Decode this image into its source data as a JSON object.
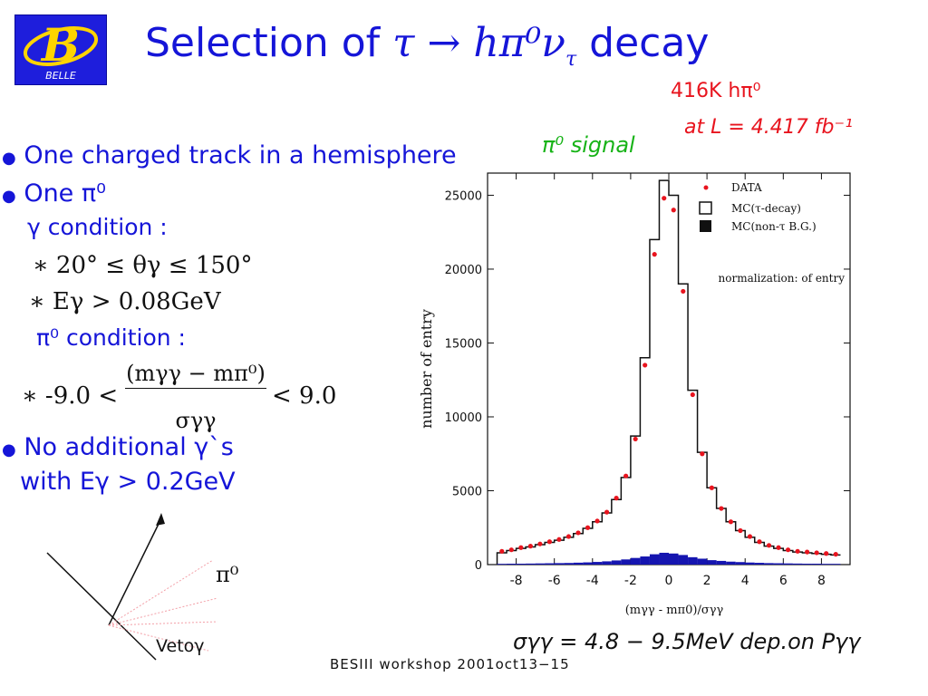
{
  "title": {
    "main": "Selection of",
    "decay": "τ → hπ⁰ν",
    "nu_sub": "τ",
    "suffix": "decay"
  },
  "logo": {
    "letter": "B",
    "text": "BELLE"
  },
  "stats": {
    "line1": "416K  hπ⁰",
    "line2": "at  L = 4.417 fb⁻¹",
    "signal": "π⁰ signal"
  },
  "bullets": [
    "One charged track in a hemisphere",
    "One π⁰",
    "No  additional γ`s",
    "with Eγ > 0.2GeV"
  ],
  "conditions": {
    "gamma_head": "γ condition :",
    "gamma_c1": "∗ 20° ≤ θγ ≤ 150°",
    "gamma_c2": "∗ Eγ > 0.08GeV",
    "pi0_head": "π⁰ condition :",
    "pi0_lhs": "∗ -9.0 <",
    "pi0_num": "(mγγ − mπ⁰)",
    "pi0_den": "σγγ",
    "pi0_rhs": "< 9.0"
  },
  "diagram": {
    "pi0_label": "π⁰",
    "veto_label": "Vetoγ"
  },
  "sigma_note": "σγγ = 4.8 − 9.5MeV dep.on Pγγ",
  "footer": "BESIII  workshop  2001oct13−15",
  "chart_data": {
    "type": "histogram",
    "xlabel": "(mγγ - mπ0)/σγγ",
    "ylabel": "number of entry",
    "note": "normalization:  of entry",
    "xlim": [
      -9.5,
      9.5
    ],
    "ylim": [
      0,
      26500
    ],
    "xticks": [
      -8,
      -6,
      -4,
      -2,
      0,
      2,
      4,
      6,
      8
    ],
    "yticks": [
      0,
      5000,
      10000,
      15000,
      20000,
      25000
    ],
    "legend": [
      "DATA",
      "MC(τ-decay)",
      "MC(non-τ B.G.)"
    ],
    "legend_position": "top-right",
    "series": [
      {
        "name": "DATA",
        "x": [
          -8.75,
          -8.25,
          -7.75,
          -7.25,
          -6.75,
          -6.25,
          -5.75,
          -5.25,
          -4.75,
          -4.25,
          -3.75,
          -3.25,
          -2.75,
          -2.25,
          -1.75,
          -1.25,
          -0.75,
          -0.25,
          0.25,
          0.75,
          1.25,
          1.75,
          2.25,
          2.75,
          3.25,
          3.75,
          4.25,
          4.75,
          5.25,
          5.75,
          6.25,
          6.75,
          7.25,
          7.75,
          8.25,
          8.75
        ],
        "values": [
          900,
          1000,
          1150,
          1250,
          1400,
          1550,
          1700,
          1900,
          2150,
          2500,
          2950,
          3550,
          4500,
          6000,
          8500,
          13500,
          21000,
          24800,
          24000,
          18500,
          11500,
          7500,
          5200,
          3800,
          2900,
          2300,
          1900,
          1550,
          1300,
          1150,
          1000,
          900,
          850,
          800,
          750,
          700
        ]
      },
      {
        "name": "MC(τ-decay)",
        "x": [
          -8.75,
          -8.25,
          -7.75,
          -7.25,
          -6.75,
          -6.25,
          -5.75,
          -5.25,
          -4.75,
          -4.25,
          -3.75,
          -3.25,
          -2.75,
          -2.25,
          -1.75,
          -1.25,
          -0.75,
          -0.25,
          0.25,
          0.75,
          1.25,
          1.75,
          2.25,
          2.75,
          3.25,
          3.75,
          4.25,
          4.75,
          5.25,
          5.75,
          6.25,
          6.75,
          7.25,
          7.75,
          8.25,
          8.75
        ],
        "values": [
          800,
          950,
          1100,
          1200,
          1350,
          1500,
          1650,
          1850,
          2100,
          2450,
          2900,
          3500,
          4400,
          5900,
          8700,
          14000,
          22000,
          26000,
          25000,
          19000,
          11800,
          7600,
          5200,
          3800,
          2900,
          2300,
          1850,
          1500,
          1250,
          1100,
          950,
          850,
          800,
          750,
          700,
          650
        ]
      },
      {
        "name": "MC(non-τ B.G.)",
        "x": [
          -8.75,
          -8.25,
          -7.75,
          -7.25,
          -6.75,
          -6.25,
          -5.75,
          -5.25,
          -4.75,
          -4.25,
          -3.75,
          -3.25,
          -2.75,
          -2.25,
          -1.75,
          -1.25,
          -0.75,
          -0.25,
          0.25,
          0.75,
          1.25,
          1.75,
          2.25,
          2.75,
          3.25,
          3.75,
          4.25,
          4.75,
          5.25,
          5.75,
          6.25,
          6.75,
          7.25,
          7.75,
          8.25,
          8.75
        ],
        "values": [
          50,
          60,
          60,
          70,
          80,
          90,
          100,
          110,
          130,
          150,
          180,
          220,
          280,
          350,
          450,
          550,
          700,
          800,
          750,
          650,
          500,
          400,
          300,
          250,
          200,
          170,
          140,
          120,
          100,
          90,
          80,
          70,
          60,
          60,
          50,
          50
        ]
      }
    ]
  },
  "colors": {
    "title": "#1515d8",
    "red": "#e8141e",
    "green": "#17b317",
    "bg_mc": "#1515b0"
  }
}
